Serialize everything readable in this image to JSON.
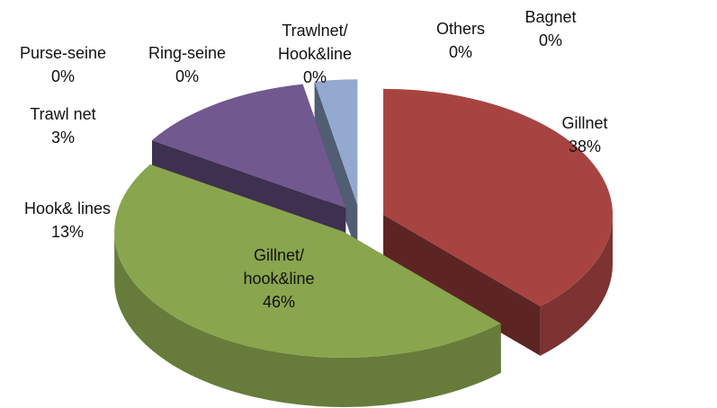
{
  "chart_data": {
    "type": "pie3d",
    "categories": [
      "Gillnet",
      "Gillnet/ hook&line",
      "Hook& lines",
      "Trawl net",
      "Purse-seine",
      "Ring-seine",
      "Trawlnet/ Hook&line",
      "Others",
      "Bagnet"
    ],
    "values": [
      38,
      46,
      13,
      3,
      0,
      0,
      0,
      0,
      0
    ],
    "value_labels": [
      "38%",
      "46%",
      "13%",
      "3%",
      "0%",
      "0%",
      "0%",
      "0%",
      "0%"
    ],
    "colors": [
      "#a74442",
      "#89a54e",
      "#71588f",
      "#93a9cf",
      "#4bacc6",
      "#1f4e5f",
      "#2c6e8a",
      "#d99694",
      "#c0504d"
    ]
  }
}
